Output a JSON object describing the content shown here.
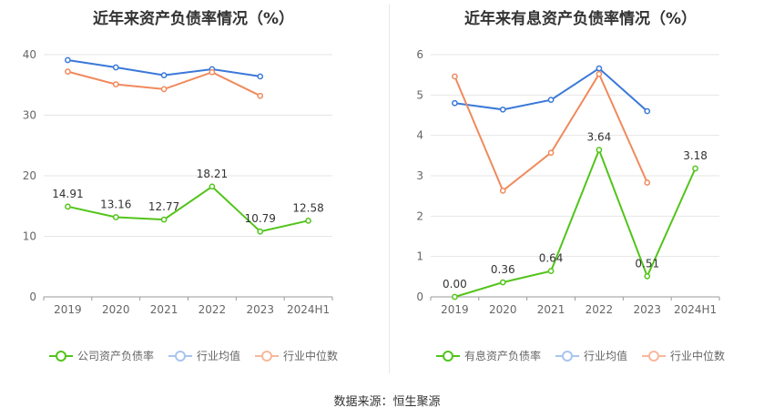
{
  "source_text": "数据来源：恒生聚源",
  "chart_data": [
    {
      "type": "line",
      "title": "近年来资产负债率情况（%）",
      "categories": [
        "2019",
        "2020",
        "2021",
        "2022",
        "2023",
        "2024H1"
      ],
      "ylim": [
        0,
        40
      ],
      "yticks": [
        0,
        10,
        20,
        30,
        40
      ],
      "grid": true,
      "legend_position": "bottom",
      "series": [
        {
          "name": "公司资产负债率",
          "color": "#52c41a",
          "values": [
            14.91,
            13.16,
            12.77,
            18.21,
            10.79,
            12.58
          ],
          "labels": [
            "14.91",
            "13.16",
            "12.77",
            "18.21",
            "10.79",
            "12.58"
          ]
        },
        {
          "name": "行业均值",
          "color": "#3a78d8",
          "values": [
            39.1,
            37.9,
            36.6,
            37.6,
            36.4,
            null
          ]
        },
        {
          "name": "行业中位数",
          "color": "#f08a5d",
          "values": [
            37.2,
            35.1,
            34.3,
            37.1,
            33.2,
            null
          ]
        }
      ]
    },
    {
      "type": "line",
      "title": "近年来有息资产负债率情况（%）",
      "categories": [
        "2019",
        "2020",
        "2021",
        "2022",
        "2023",
        "2024H1"
      ],
      "ylim": [
        0,
        6
      ],
      "yticks": [
        0,
        1,
        2,
        3,
        4,
        5,
        6
      ],
      "grid": true,
      "legend_position": "bottom",
      "series": [
        {
          "name": "有息资产负债率",
          "color": "#52c41a",
          "values": [
            0.0,
            0.36,
            0.64,
            3.64,
            0.51,
            3.18
          ],
          "labels": [
            "0.00",
            "0.36",
            "0.64",
            "3.64",
            "0.51",
            "3.18"
          ]
        },
        {
          "name": "行业均值",
          "color": "#3a78d8",
          "values": [
            4.8,
            4.64,
            4.88,
            5.66,
            4.6,
            null
          ]
        },
        {
          "name": "行业中位数",
          "color": "#f08a5d",
          "values": [
            5.46,
            2.63,
            3.57,
            5.52,
            2.83,
            null
          ]
        }
      ]
    }
  ]
}
